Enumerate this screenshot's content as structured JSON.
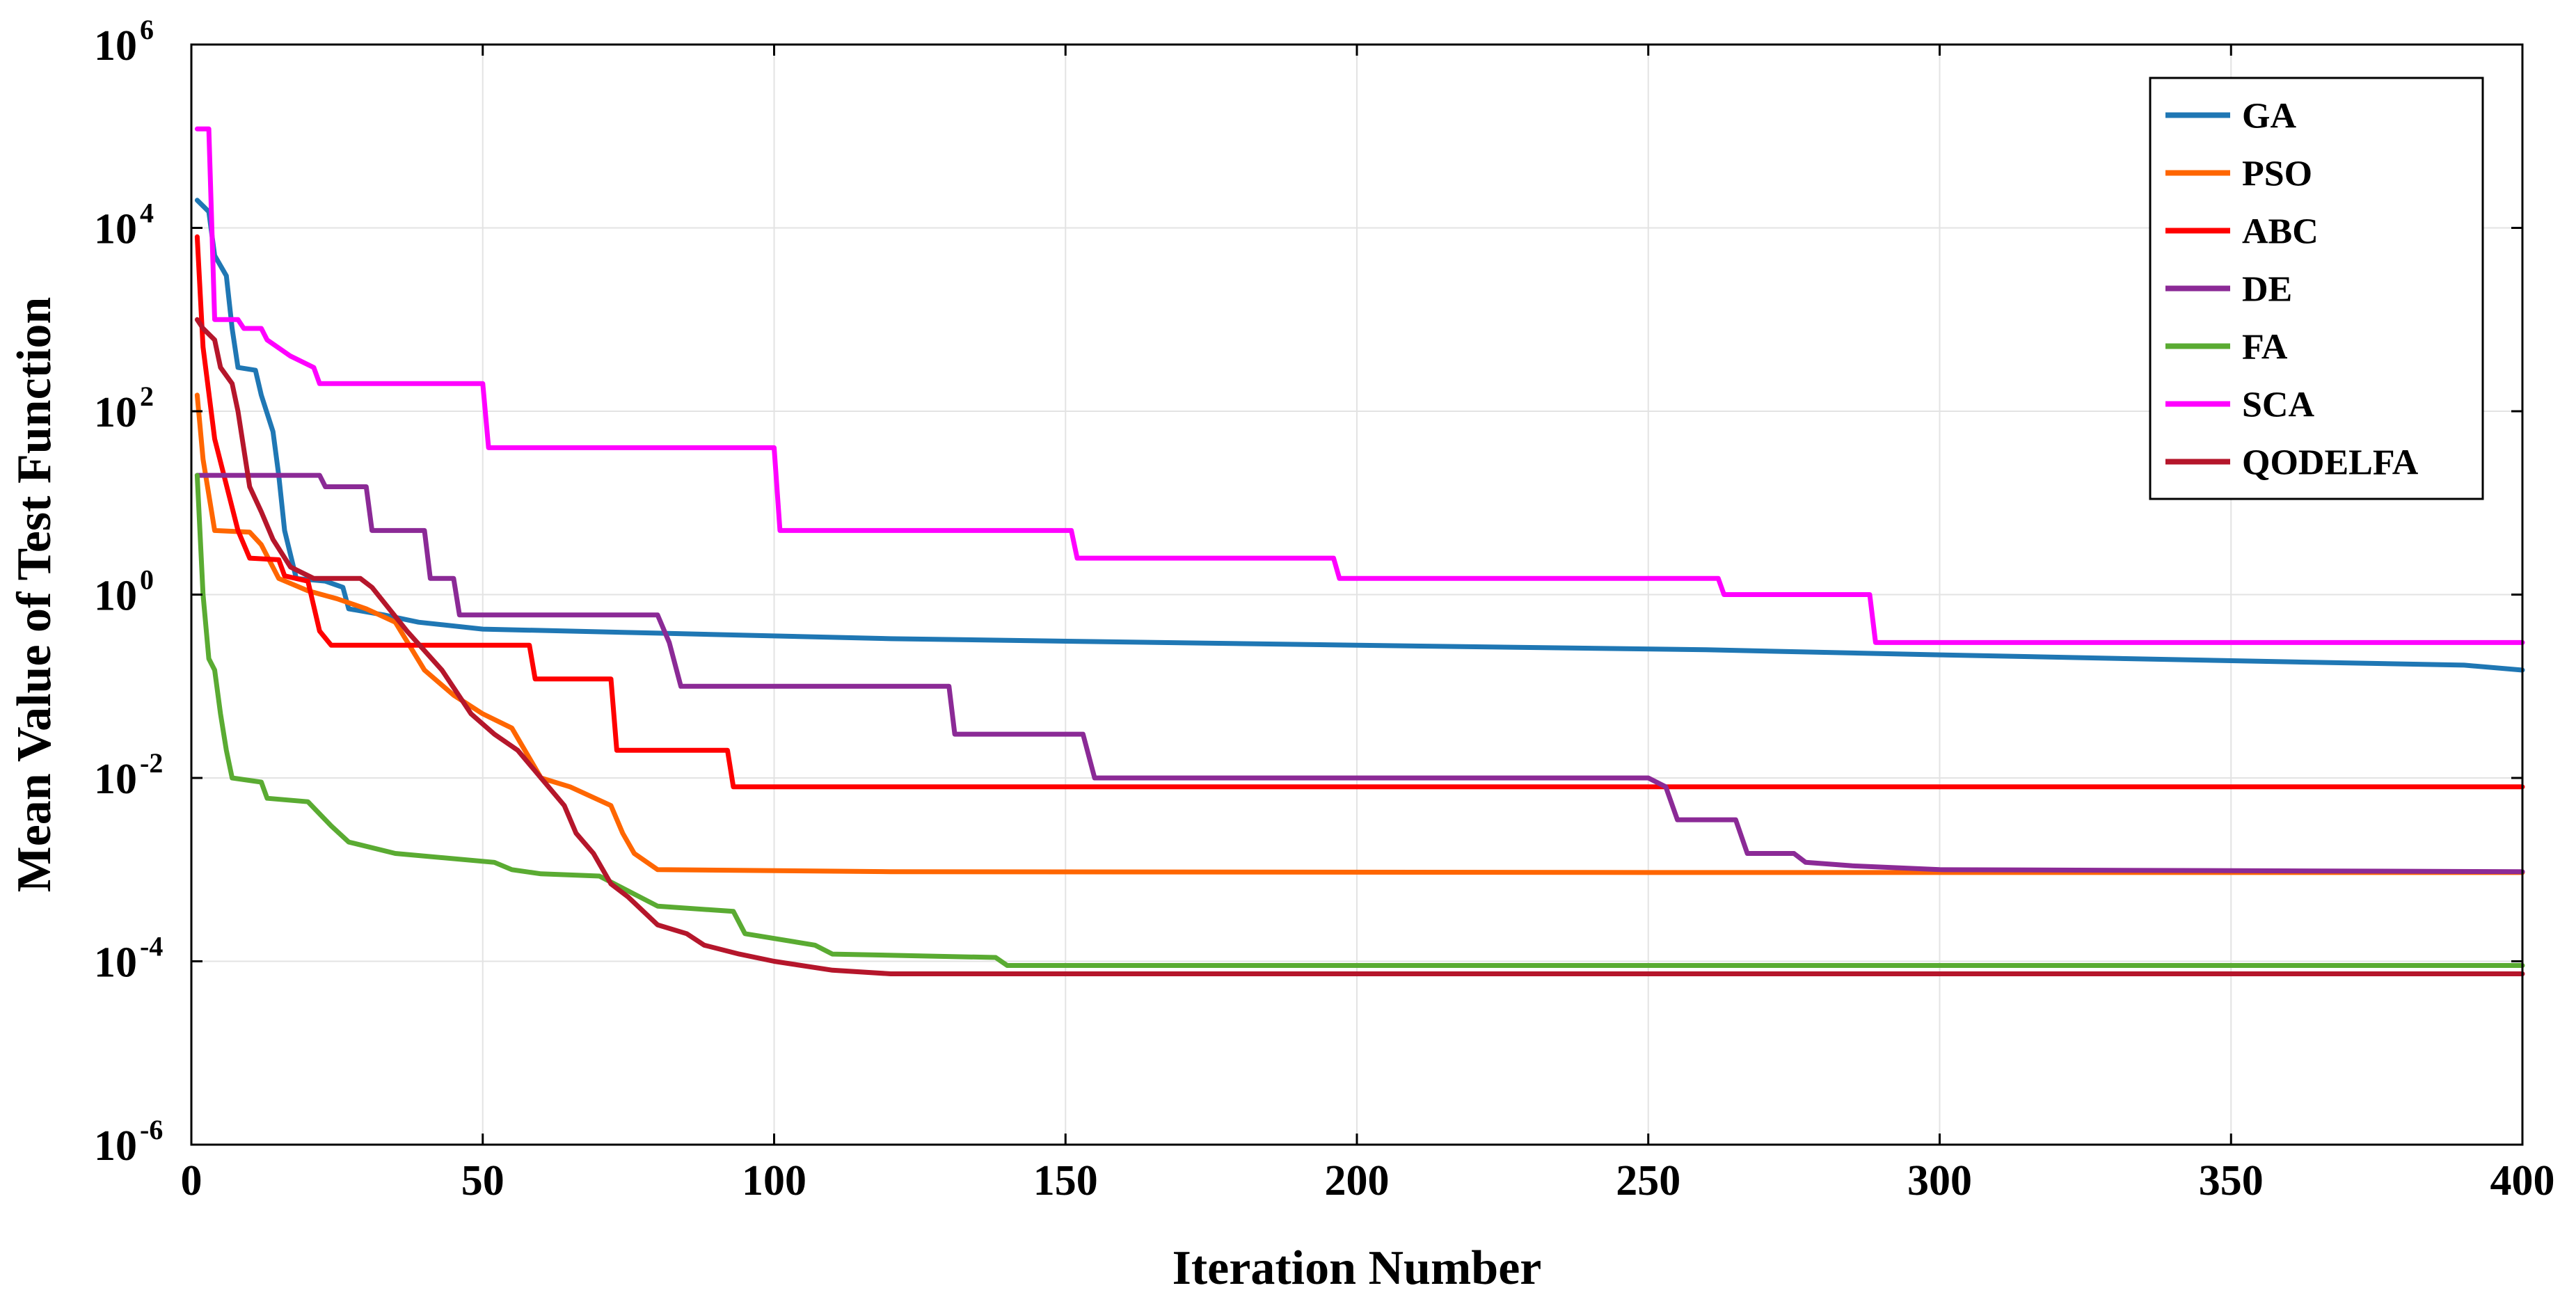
{
  "chart_data": {
    "type": "line",
    "xlabel": "Iteration Number",
    "ylabel": "Mean Value of Test Function",
    "xlim": [
      0,
      400
    ],
    "ylim_log10": [
      -6,
      6
    ],
    "yscale": "log",
    "x_ticks": [
      0,
      50,
      100,
      150,
      200,
      250,
      300,
      350,
      400
    ],
    "x_tick_labels": [
      "0",
      "50",
      "100",
      "150",
      "200",
      "250",
      "300",
      "350",
      "400"
    ],
    "y_tick_exponents": [
      -6,
      -4,
      -2,
      0,
      2,
      4,
      6
    ],
    "y_tick_base": "10",
    "y_tick_exponent_labels": [
      "-6",
      "-4",
      "-2",
      "0",
      "2",
      "4",
      "6"
    ],
    "grid": true,
    "legend_position": "top-right",
    "series": [
      {
        "name": "GA",
        "color": "#1f77b4",
        "points": [
          [
            1,
            20000
          ],
          [
            3,
            15000
          ],
          [
            4,
            5000
          ],
          [
            6,
            3000
          ],
          [
            7,
            800
          ],
          [
            8,
            300
          ],
          [
            11,
            280
          ],
          [
            12,
            150
          ],
          [
            14,
            60
          ],
          [
            15,
            20
          ],
          [
            16,
            5
          ],
          [
            18,
            1.5
          ],
          [
            23,
            1.4
          ],
          [
            26,
            1.2
          ],
          [
            27,
            0.7
          ],
          [
            33,
            0.6
          ],
          [
            39,
            0.5
          ],
          [
            50,
            0.42
          ],
          [
            80,
            0.38
          ],
          [
            120,
            0.33
          ],
          [
            200,
            0.28
          ],
          [
            260,
            0.25
          ],
          [
            300,
            0.22
          ],
          [
            350,
            0.19
          ],
          [
            390,
            0.17
          ],
          [
            400,
            0.15
          ]
        ]
      },
      {
        "name": "PSO",
        "color": "#ff6600",
        "points": [
          [
            1,
            150
          ],
          [
            2,
            30
          ],
          [
            4,
            5
          ],
          [
            10,
            4.8
          ],
          [
            12,
            3.5
          ],
          [
            15,
            1.5
          ],
          [
            20,
            1.1
          ],
          [
            25,
            0.9
          ],
          [
            30,
            0.7
          ],
          [
            35,
            0.5
          ],
          [
            40,
            0.15
          ],
          [
            45,
            0.08
          ],
          [
            50,
            0.05
          ],
          [
            55,
            0.035
          ],
          [
            60,
            0.01
          ],
          [
            65,
            0.008
          ],
          [
            72,
            0.005
          ],
          [
            74,
            0.0025
          ],
          [
            76,
            0.0015
          ],
          [
            80,
            0.001
          ],
          [
            120,
            0.00095
          ],
          [
            250,
            0.00093
          ],
          [
            400,
            0.00093
          ]
        ]
      },
      {
        "name": "ABC",
        "color": "#ff0000",
        "points": [
          [
            1,
            8000
          ],
          [
            2,
            500
          ],
          [
            4,
            50
          ],
          [
            8,
            5
          ],
          [
            10,
            2.5
          ],
          [
            15,
            2.4
          ],
          [
            16,
            1.6
          ],
          [
            20,
            1.4
          ],
          [
            22,
            0.4
          ],
          [
            24,
            0.28
          ],
          [
            58,
            0.28
          ],
          [
            59,
            0.12
          ],
          [
            72,
            0.12
          ],
          [
            73,
            0.02
          ],
          [
            92,
            0.02
          ],
          [
            93,
            0.008
          ],
          [
            400,
            0.008
          ]
        ]
      },
      {
        "name": "DE",
        "color": "#8b2a96",
        "points": [
          [
            1,
            20
          ],
          [
            22,
            20
          ],
          [
            23,
            15
          ],
          [
            30,
            15
          ],
          [
            31,
            5
          ],
          [
            40,
            5
          ],
          [
            41,
            1.5
          ],
          [
            45,
            1.5
          ],
          [
            46,
            0.6
          ],
          [
            80,
            0.6
          ],
          [
            82,
            0.3
          ],
          [
            84,
            0.1
          ],
          [
            130,
            0.1
          ],
          [
            131,
            0.03
          ],
          [
            153,
            0.03
          ],
          [
            155,
            0.01
          ],
          [
            250,
            0.01
          ],
          [
            253,
            0.008
          ],
          [
            255,
            0.0035
          ],
          [
            265,
            0.0035
          ],
          [
            267,
            0.0015
          ],
          [
            275,
            0.0015
          ],
          [
            277,
            0.0012
          ],
          [
            285,
            0.0011
          ],
          [
            300,
            0.001
          ],
          [
            400,
            0.00095
          ]
        ]
      },
      {
        "name": "FA",
        "color": "#5aab32",
        "points": [
          [
            1,
            20
          ],
          [
            2,
            1
          ],
          [
            3,
            0.2
          ],
          [
            4,
            0.15
          ],
          [
            5,
            0.05
          ],
          [
            6,
            0.02
          ],
          [
            7,
            0.01
          ],
          [
            12,
            0.009
          ],
          [
            13,
            0.006
          ],
          [
            20,
            0.0055
          ],
          [
            24,
            0.003
          ],
          [
            27,
            0.002
          ],
          [
            35,
            0.0015
          ],
          [
            52,
            0.0012
          ],
          [
            55,
            0.001
          ],
          [
            60,
            0.0009
          ],
          [
            70,
            0.00085
          ],
          [
            80,
            0.0004
          ],
          [
            93,
            0.00035
          ],
          [
            95,
            0.0002
          ],
          [
            107,
            0.00015
          ],
          [
            110,
            0.00012
          ],
          [
            138,
            0.00011
          ],
          [
            140,
            9e-05
          ],
          [
            400,
            9e-05
          ]
        ]
      },
      {
        "name": "SCA",
        "color": "#ff00ff",
        "points": [
          [
            1,
            120000
          ],
          [
            3,
            120000
          ],
          [
            4,
            1000
          ],
          [
            8,
            1000
          ],
          [
            9,
            800
          ],
          [
            12,
            800
          ],
          [
            13,
            600
          ],
          [
            17,
            400
          ],
          [
            21,
            300
          ],
          [
            22,
            200
          ],
          [
            50,
            200
          ],
          [
            51,
            40
          ],
          [
            100,
            40
          ],
          [
            101,
            5
          ],
          [
            151,
            5
          ],
          [
            152,
            2.5
          ],
          [
            196,
            2.5
          ],
          [
            197,
            1.5
          ],
          [
            262,
            1.5
          ],
          [
            263,
            1
          ],
          [
            288,
            1
          ],
          [
            289,
            0.3
          ],
          [
            400,
            0.3
          ]
        ]
      },
      {
        "name": "QODELFA",
        "color": "#b5162b",
        "points": [
          [
            1,
            1000
          ],
          [
            2,
            800
          ],
          [
            4,
            600
          ],
          [
            5,
            300
          ],
          [
            7,
            200
          ],
          [
            8,
            100
          ],
          [
            10,
            15
          ],
          [
            12,
            8
          ],
          [
            14,
            4
          ],
          [
            17,
            2
          ],
          [
            21,
            1.5
          ],
          [
            29,
            1.5
          ],
          [
            31,
            1.2
          ],
          [
            37,
            0.4
          ],
          [
            43,
            0.15
          ],
          [
            48,
            0.05
          ],
          [
            52,
            0.03
          ],
          [
            56,
            0.02
          ],
          [
            60,
            0.01
          ],
          [
            64,
            0.005
          ],
          [
            66,
            0.0025
          ],
          [
            69,
            0.0015
          ],
          [
            72,
            0.0007
          ],
          [
            75,
            0.0005
          ],
          [
            80,
            0.00025
          ],
          [
            85,
            0.0002
          ],
          [
            88,
            0.00015
          ],
          [
            94,
            0.00012
          ],
          [
            100,
            0.0001
          ],
          [
            110,
            8e-05
          ],
          [
            120,
            7.3e-05
          ],
          [
            400,
            7.3e-05
          ]
        ]
      }
    ]
  }
}
